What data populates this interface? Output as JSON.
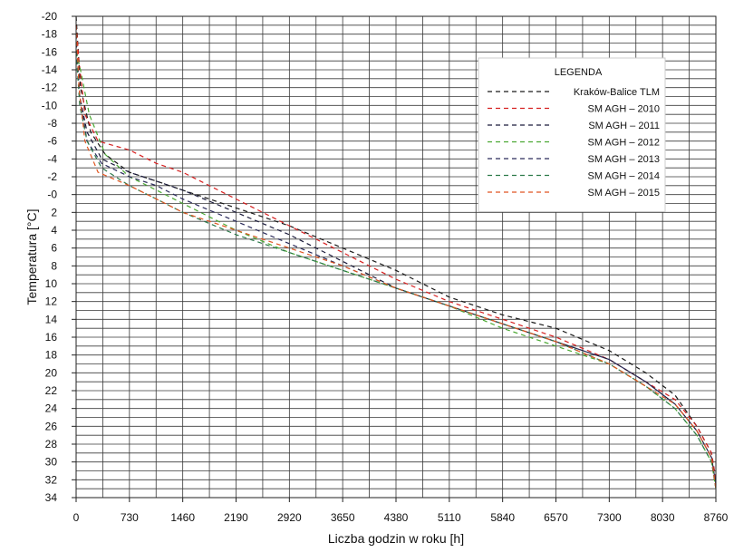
{
  "chart_data": {
    "type": "line",
    "title": "",
    "xlabel": "Liczba godzin w roku [h]",
    "ylabel": "Temperatura [°C]",
    "xlim": [
      0,
      8760
    ],
    "ylim": [
      -20,
      34
    ],
    "y_inverted": true,
    "grid": true,
    "x_ticks": [
      0,
      730,
      1460,
      2190,
      2920,
      3650,
      4380,
      5110,
      5840,
      6570,
      7300,
      8030,
      8760
    ],
    "x_tick_labels": [
      "0",
      "730",
      "1460",
      "2190",
      "2920",
      "3650",
      "4380",
      "5110",
      "5840",
      "6570",
      "7300",
      "8030",
      "8760"
    ],
    "y_ticks": [
      -20,
      -18,
      -16,
      -14,
      -12,
      -10,
      -8,
      -6,
      -4,
      -2,
      0,
      2,
      4,
      6,
      8,
      10,
      12,
      14,
      16,
      18,
      20,
      22,
      24,
      26,
      28,
      30,
      32,
      34
    ],
    "y_tick_labels": [
      "-20",
      "-18",
      "-16",
      "-14",
      "-12",
      "-10",
      "-8",
      "-6",
      "-4",
      "-2",
      "-0",
      "2",
      "4",
      "6",
      "8",
      "10",
      "12",
      "14",
      "16",
      "18",
      "20",
      "22",
      "24",
      "26",
      "28",
      "30",
      "32",
      "34"
    ],
    "legend": {
      "title": "LEGENDA",
      "position": "top-right"
    },
    "series": [
      {
        "name": "Kraków-Balice TLM",
        "color": "#1a1a1a",
        "x": [
          0,
          60,
          200,
          400,
          730,
          1100,
          1460,
          2190,
          2920,
          3650,
          4380,
          5110,
          5840,
          6570,
          7300,
          7800,
          8200,
          8500,
          8700,
          8760
        ],
        "y": [
          -20,
          -12,
          -7,
          -4.5,
          -2.5,
          -1.5,
          -0.5,
          1.5,
          3.5,
          6,
          8.5,
          11.5,
          13.5,
          15,
          17.5,
          20,
          22.5,
          26,
          29,
          32
        ]
      },
      {
        "name": "SM AGH – 2010",
        "color": "#d62020",
        "x": [
          0,
          40,
          120,
          300,
          730,
          1100,
          1460,
          2190,
          2920,
          3650,
          4380,
          5110,
          5840,
          6570,
          7300,
          7800,
          8200,
          8500,
          8700,
          8760
        ],
        "y": [
          -19,
          -15,
          -9,
          -6,
          -5,
          -3.5,
          -2.5,
          0.5,
          3.5,
          6.5,
          9.5,
          12,
          14,
          16,
          18.5,
          21,
          23,
          26,
          29,
          32
        ]
      },
      {
        "name": "SM AGH – 2011",
        "color": "#1a1a3a",
        "x": [
          0,
          50,
          150,
          350,
          730,
          1100,
          1460,
          2190,
          2920,
          3650,
          4380,
          5110,
          5840,
          6570,
          7300,
          7800,
          8200,
          8500,
          8700,
          8760
        ],
        "y": [
          -17,
          -11,
          -7,
          -4,
          -2.5,
          -1.5,
          -0.5,
          2,
          4.5,
          7.5,
          10.5,
          12.5,
          14.5,
          16.5,
          18.5,
          21,
          23.5,
          26.5,
          29.5,
          32.5
        ]
      },
      {
        "name": "SM AGH – 2012",
        "color": "#4aa832",
        "x": [
          0,
          60,
          180,
          400,
          730,
          1100,
          1460,
          2190,
          2920,
          3650,
          4380,
          5110,
          5840,
          6570,
          7300,
          7800,
          8200,
          8500,
          8700,
          8760
        ],
        "y": [
          -16,
          -14,
          -9,
          -4.5,
          -2,
          -0.5,
          1,
          4,
          6.5,
          8.5,
          10.5,
          12.5,
          15,
          17,
          19,
          21.5,
          24,
          27,
          30,
          33
        ]
      },
      {
        "name": "SM AGH – 2013",
        "color": "#2a2a5a",
        "x": [
          0,
          50,
          150,
          350,
          730,
          1100,
          1460,
          2190,
          2920,
          3650,
          4380,
          5110,
          5840,
          6570,
          7300,
          7800,
          8200,
          8500,
          8700,
          8760
        ],
        "y": [
          -18,
          -11,
          -6,
          -3.5,
          -2,
          -1,
          0.5,
          3,
          5.5,
          8,
          10.5,
          12.5,
          14.5,
          16.5,
          18.5,
          21,
          23.5,
          26.5,
          29.5,
          32.5
        ]
      },
      {
        "name": "SM AGH – 2014",
        "color": "#2d7a4a",
        "x": [
          0,
          50,
          150,
          350,
          730,
          1100,
          1460,
          2190,
          2920,
          3650,
          4380,
          5110,
          5840,
          6570,
          7300,
          7800,
          8200,
          8500,
          8700,
          8760
        ],
        "y": [
          -16,
          -10,
          -6,
          -3,
          -1,
          0.5,
          2,
          4.5,
          6.5,
          8.5,
          10.5,
          12.5,
          14.5,
          16.5,
          19,
          21.5,
          24,
          27,
          30,
          33
        ]
      },
      {
        "name": "SM AGH – 2015",
        "color": "#e05520",
        "x": [
          0,
          40,
          120,
          300,
          730,
          1100,
          1460,
          2190,
          2920,
          3650,
          4380,
          5110,
          5840,
          6570,
          7300,
          7800,
          8200,
          8500,
          8700,
          8760
        ],
        "y": [
          -19,
          -12,
          -6,
          -2.5,
          -1,
          0.5,
          2,
          4,
          6,
          8,
          10.5,
          12.5,
          14.5,
          16.5,
          19,
          21.5,
          23.5,
          26.5,
          29.5,
          33
        ]
      }
    ]
  }
}
